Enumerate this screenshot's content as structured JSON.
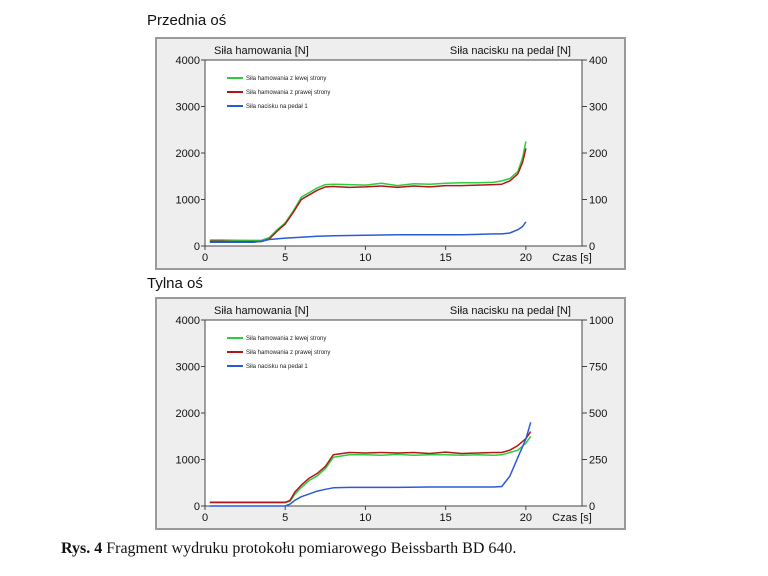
{
  "figure": {
    "caption_label": "Rys. 4",
    "caption_text": " Fragment wydruku protokołu pomiarowego Beissbarth  BD 640."
  },
  "colors": {
    "left": "#2ecc40",
    "right": "#b01818",
    "pedal": "#2a5bd7",
    "frame_bg": "#eeeeee"
  },
  "chart_data": [
    {
      "type": "line",
      "title": "Przednia oś",
      "ylabel_left": "Siła hamowania [N]",
      "ylabel_right": "Siła nacisku na pedał [N]",
      "xlabel": "Czas [s]",
      "xlim": [
        0,
        23.5
      ],
      "ylim_left": [
        0,
        4000
      ],
      "ylim_right": [
        0,
        400
      ],
      "xticks": [
        0,
        5,
        10,
        15,
        20
      ],
      "yticks_left": [
        0,
        1000,
        2000,
        3000,
        4000
      ],
      "yticks_right": [
        0,
        100,
        200,
        300,
        400
      ],
      "series": [
        {
          "name": "Siła hamowania z lewej strony",
          "axis": "left",
          "color": "#2ecc40",
          "x": [
            0.3,
            1,
            2,
            3,
            3.5,
            4,
            4.5,
            5,
            5.5,
            6,
            6.5,
            7,
            7.5,
            8,
            9,
            10,
            11,
            12,
            13,
            14,
            15,
            16,
            17,
            18,
            18.5,
            19,
            19.5,
            19.8,
            20
          ],
          "y": [
            130,
            130,
            125,
            120,
            120,
            180,
            350,
            500,
            750,
            1050,
            1150,
            1250,
            1320,
            1330,
            1320,
            1310,
            1350,
            1300,
            1340,
            1330,
            1350,
            1360,
            1360,
            1370,
            1400,
            1450,
            1600,
            1900,
            2250
          ]
        },
        {
          "name": "Siła hamowania z prawej strony",
          "axis": "left",
          "color": "#b01818",
          "x": [
            0.3,
            1,
            2,
            3,
            3.5,
            4,
            4.5,
            5,
            5.5,
            6,
            6.5,
            7,
            7.5,
            8,
            9,
            10,
            11,
            12,
            13,
            14,
            15,
            16,
            17,
            18,
            18.5,
            19,
            19.5,
            19.8,
            20
          ],
          "y": [
            100,
            100,
            95,
            95,
            95,
            150,
            320,
            470,
            720,
            1000,
            1100,
            1200,
            1270,
            1280,
            1260,
            1270,
            1290,
            1260,
            1290,
            1270,
            1300,
            1300,
            1310,
            1320,
            1330,
            1400,
            1550,
            1800,
            2100
          ]
        },
        {
          "name": "Siła nacisku na pedał 1",
          "axis": "right",
          "color": "#2a5bd7",
          "x": [
            0.3,
            2,
            3,
            3.5,
            4,
            5,
            6,
            7,
            8,
            10,
            12,
            14,
            16,
            17,
            18,
            18.5,
            19,
            19.5,
            19.8,
            20
          ],
          "y": [
            8,
            8,
            8,
            10,
            14,
            17,
            19,
            21,
            22,
            23,
            24,
            24,
            24,
            25,
            26,
            26,
            28,
            35,
            42,
            52
          ]
        }
      ]
    },
    {
      "type": "line",
      "title": "Tylna oś",
      "ylabel_left": "Siła hamowania [N]",
      "ylabel_right": "Siła nacisku na pedał [N]",
      "xlabel": "Czas [s]",
      "xlim": [
        0,
        23.5
      ],
      "ylim_left": [
        0,
        4000
      ],
      "ylim_right": [
        0,
        1000
      ],
      "xticks": [
        0,
        5,
        10,
        15,
        20
      ],
      "yticks_left": [
        0,
        1000,
        2000,
        3000,
        4000
      ],
      "yticks_right": [
        0,
        250,
        500,
        750,
        1000
      ],
      "series": [
        {
          "name": "Siła hamowania z lewej strony",
          "axis": "left",
          "color": "#2ecc40",
          "x": [
            0.3,
            1,
            2,
            3,
            4,
            5,
            5.3,
            5.6,
            6,
            6.5,
            7,
            7.5,
            8,
            9,
            10,
            11,
            12,
            13,
            14,
            15,
            16,
            17,
            18,
            18.5,
            19,
            19.5,
            20,
            20.3
          ],
          "y": [
            70,
            70,
            70,
            70,
            70,
            70,
            100,
            250,
            400,
            550,
            650,
            800,
            1050,
            1100,
            1100,
            1090,
            1110,
            1090,
            1100,
            1100,
            1090,
            1100,
            1090,
            1100,
            1150,
            1200,
            1350,
            1500
          ]
        },
        {
          "name": "Siła hamowania z prawej strony",
          "axis": "left",
          "color": "#b01818",
          "x": [
            0.3,
            1,
            2,
            3,
            4,
            5,
            5.3,
            5.6,
            6,
            6.5,
            7,
            7.5,
            8,
            9,
            10,
            11,
            12,
            13,
            14,
            15,
            16,
            17,
            18,
            18.5,
            19,
            19.5,
            20,
            20.3
          ],
          "y": [
            80,
            80,
            80,
            80,
            80,
            80,
            120,
            300,
            450,
            600,
            700,
            850,
            1100,
            1150,
            1140,
            1150,
            1140,
            1150,
            1130,
            1160,
            1130,
            1140,
            1150,
            1150,
            1200,
            1300,
            1450,
            1600
          ]
        },
        {
          "name": "Siła nacisku na pedał 1",
          "axis": "right",
          "color": "#2a5bd7",
          "x": [
            0.3,
            5,
            5.3,
            5.6,
            6,
            6.5,
            7,
            7.5,
            8,
            9,
            10,
            12,
            14,
            16,
            17,
            18,
            18.5,
            19,
            19.5,
            20,
            20.3
          ],
          "y": [
            0,
            0,
            10,
            30,
            50,
            65,
            80,
            90,
            98,
            100,
            100,
            100,
            102,
            102,
            102,
            102,
            105,
            160,
            260,
            360,
            450
          ]
        }
      ]
    }
  ]
}
